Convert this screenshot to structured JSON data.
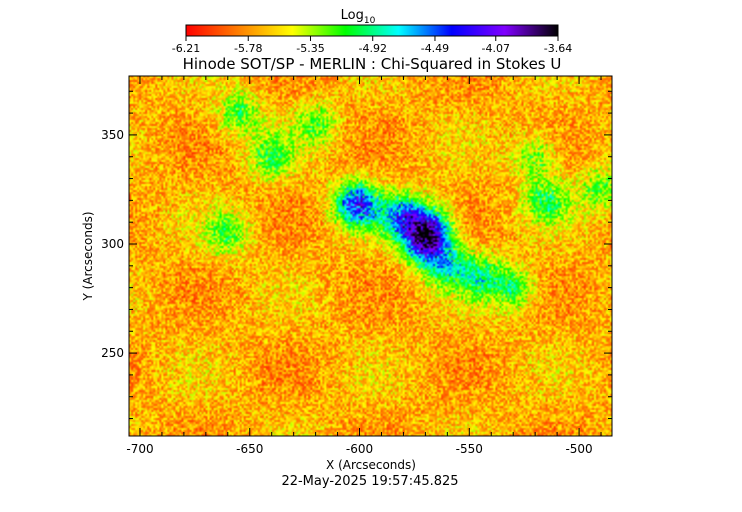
{
  "chart_data": {
    "type": "heatmap",
    "title": "Hinode SOT/SP - MERLIN : Chi-Squared in Stokes U",
    "xlabel": "X (Arcseconds)",
    "ylabel": "Y (Arcseconds)",
    "footer": "22-May-2025 19:57:45.825",
    "colorbar": {
      "label_main": "Log",
      "label_sub": "10",
      "ticks": [
        -6.21,
        -5.78,
        -5.35,
        -4.92,
        -4.49,
        -4.07,
        -3.64
      ],
      "tick_labels": [
        "-6.21",
        "-5.78",
        "-5.35",
        "-4.92",
        "-4.49",
        "-4.07",
        "-3.64"
      ],
      "range": [
        -6.21,
        -3.64
      ],
      "colormap": [
        "#ff0000",
        "#ff8000",
        "#ffff00",
        "#00ff00",
        "#00ffff",
        "#0000ff",
        "#8000ff",
        "#000000"
      ]
    },
    "xlim": [
      -705,
      -485
    ],
    "ylim": [
      212,
      377
    ],
    "xticks": [
      -700,
      -650,
      -600,
      -550,
      -500
    ],
    "xtick_labels": [
      "-700",
      "-650",
      "-600",
      "-550",
      "-500"
    ],
    "yticks": [
      250,
      300,
      350
    ],
    "ytick_labels": [
      "250",
      "300",
      "350"
    ],
    "background_level": -5.7,
    "features": [
      {
        "x": -601,
        "y": 318,
        "level": -4.25
      },
      {
        "x": -580,
        "y": 312,
        "level": -4.45
      },
      {
        "x": -570,
        "y": 300,
        "level": -4.3
      },
      {
        "x": -567,
        "y": 308,
        "level": -4.7
      },
      {
        "x": -560,
        "y": 290,
        "level": -4.9
      },
      {
        "x": -545,
        "y": 285,
        "level": -5.0
      },
      {
        "x": -530,
        "y": 280,
        "level": -5.05
      },
      {
        "x": -515,
        "y": 320,
        "level": -5.05
      },
      {
        "x": -640,
        "y": 340,
        "level": -5.1
      },
      {
        "x": -655,
        "y": 360,
        "level": -5.1
      },
      {
        "x": -660,
        "y": 305,
        "level": -5.15
      },
      {
        "x": -520,
        "y": 340,
        "level": -5.15
      },
      {
        "x": -490,
        "y": 325,
        "level": -5.15
      },
      {
        "x": -620,
        "y": 355,
        "level": -5.2
      }
    ]
  }
}
